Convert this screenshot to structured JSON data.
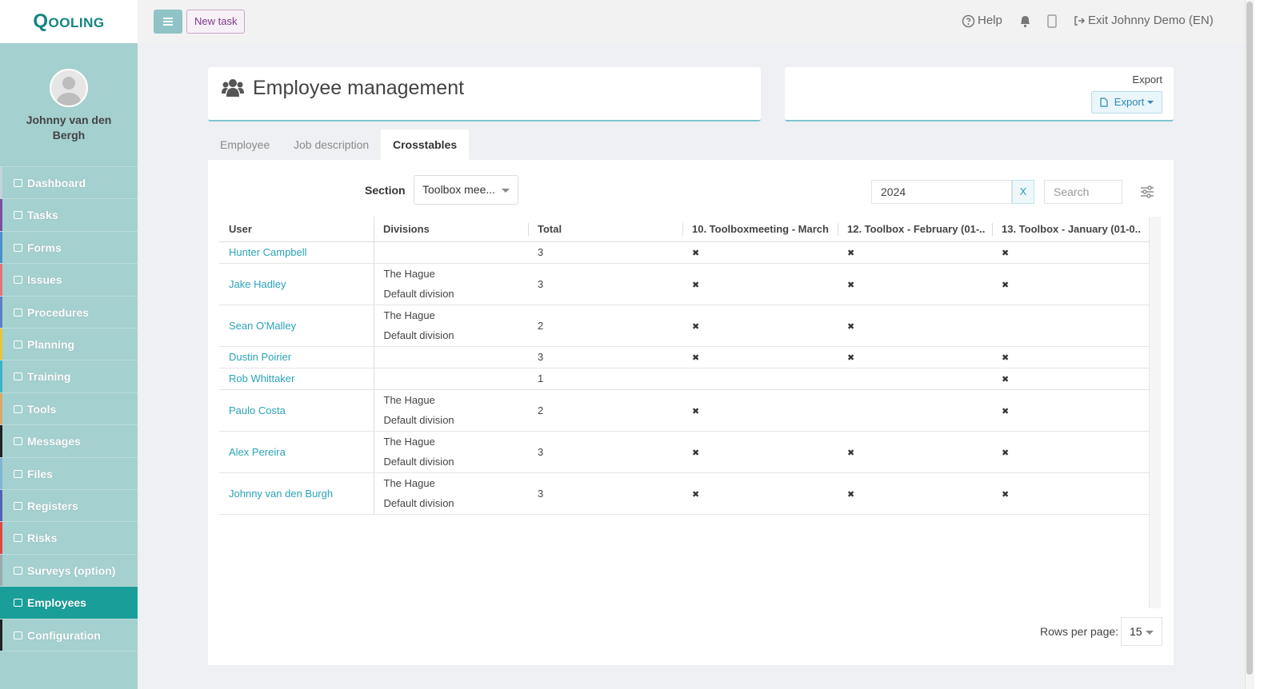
{
  "brand": "Qooling",
  "topbar": {
    "new_task": "New task",
    "help": "Help",
    "exit": "Exit Johnny Demo (EN)"
  },
  "sidebar": {
    "user": "Johnny van den Bergh",
    "nav": [
      {
        "label": "Dashboard",
        "color": "#c3d4dc"
      },
      {
        "label": "Tasks",
        "color": "#7b4fa0"
      },
      {
        "label": "Forms",
        "color": "#4a90c8"
      },
      {
        "label": "Issues",
        "color": "#e57373"
      },
      {
        "label": "Procedures",
        "color": "#5b7fc2"
      },
      {
        "label": "Planning",
        "color": "#e5c53a"
      },
      {
        "label": "Training",
        "color": "#3bb3c9"
      },
      {
        "label": "Tools",
        "color": "#d9a86a"
      },
      {
        "label": "Messages",
        "color": "#222222"
      },
      {
        "label": "Files",
        "color": "#7fb6d6"
      },
      {
        "label": "Registers",
        "color": "#5360b5"
      },
      {
        "label": "Risks",
        "color": "#e0473f"
      },
      {
        "label": "Surveys (option)",
        "color": "#9aaaaa"
      },
      {
        "label": "Employees",
        "color": "#1a9e99",
        "active": true
      },
      {
        "label": "Configuration",
        "color": "#222222"
      }
    ]
  },
  "page": {
    "title": "Employee management",
    "export_label": "Export",
    "export_button": "Export"
  },
  "tabs": [
    {
      "label": "Employee"
    },
    {
      "label": "Job description"
    },
    {
      "label": "Crosstables",
      "active": true
    }
  ],
  "filters": {
    "section_label": "Section",
    "section_value": "Toolbox mee...",
    "year": "2024",
    "clear": "X",
    "search_placeholder": "Search"
  },
  "table": {
    "columns": [
      "User",
      "Divisions",
      "Total",
      "10. Toolboxmeeting - March",
      "12. Toolbox - February (01-..",
      "13. Toolbox - January (01-0.."
    ],
    "rows": [
      {
        "user": "Hunter Campbell",
        "divisions": [],
        "total": 3,
        "marks": [
          "✖",
          "✖",
          "✖"
        ]
      },
      {
        "user": "Jake Hadley",
        "divisions": [
          "The Hague",
          "Default division"
        ],
        "total": 3,
        "marks": [
          "✖",
          "✖",
          "✖"
        ]
      },
      {
        "user": "Sean O'Malley",
        "divisions": [
          "The Hague",
          "Default division"
        ],
        "total": 2,
        "marks": [
          "✖",
          "✖",
          null
        ]
      },
      {
        "user": "Dustin Poirier",
        "divisions": [],
        "total": 3,
        "marks": [
          "✖",
          "✖",
          "✖"
        ]
      },
      {
        "user": "Rob Whittaker",
        "divisions": [],
        "total": 1,
        "marks": [
          null,
          null,
          "✖"
        ]
      },
      {
        "user": "Paulo Costa",
        "divisions": [
          "The Hague",
          "Default division"
        ],
        "total": 2,
        "marks": [
          "✖",
          null,
          "✖"
        ]
      },
      {
        "user": "Alex Pereira",
        "divisions": [
          "The Hague",
          "Default division"
        ],
        "total": 3,
        "marks": [
          "✖",
          "✖",
          "✖"
        ]
      },
      {
        "user": "Johnny van den Burgh",
        "divisions": [
          "The Hague",
          "Default division"
        ],
        "total": 3,
        "marks": [
          "✖",
          "✖",
          "✖"
        ]
      }
    ]
  },
  "pagination": {
    "label": "Rows per page:",
    "value": 15
  }
}
